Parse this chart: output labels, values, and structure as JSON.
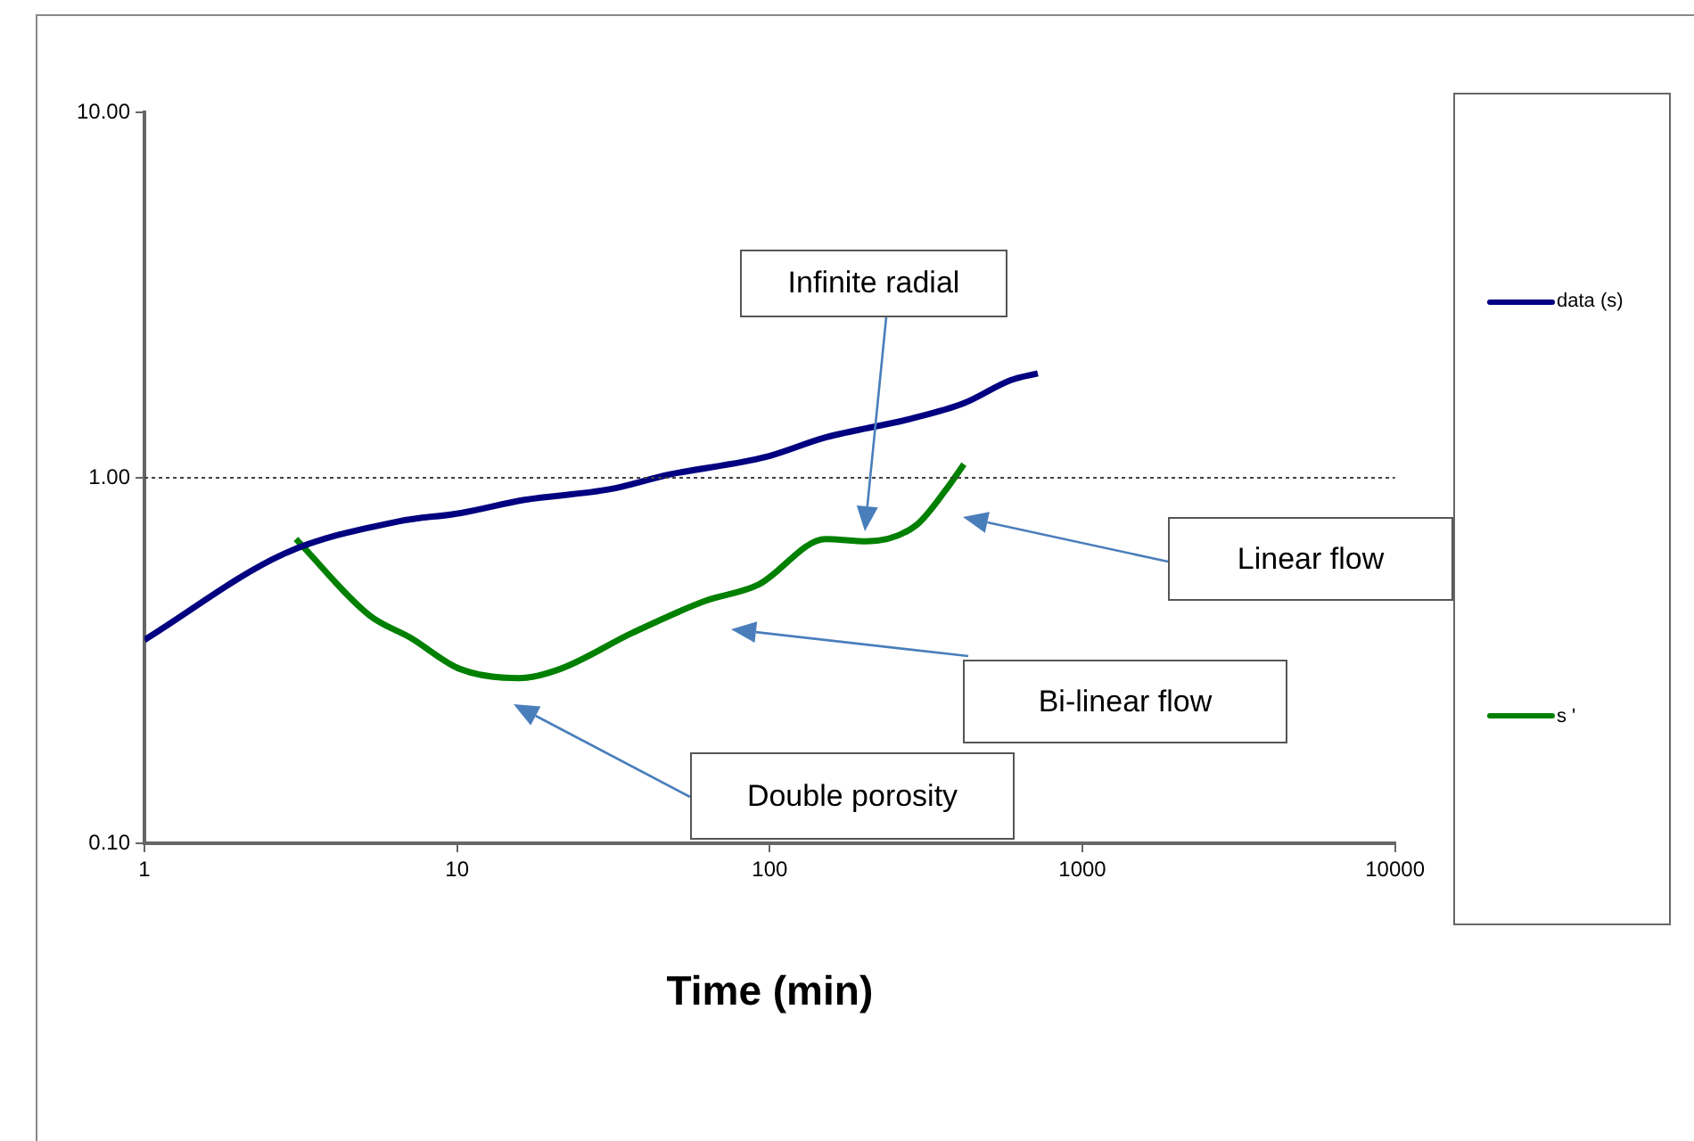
{
  "chart_data": {
    "type": "line",
    "xlabel": "Time (min)",
    "log": "xy",
    "xlim": [
      1,
      10000
    ],
    "xticks": [
      1,
      10,
      100,
      1000,
      10000
    ],
    "ylim": [
      0.1,
      10
    ],
    "yticks": [
      {
        "value": 0.1,
        "label": "0.10"
      },
      {
        "value": 1,
        "label": "1.00"
      },
      {
        "value": 10,
        "label": "10.00"
      }
    ],
    "grid": false,
    "legend": "right",
    "marker": "none",
    "line_style": "solid",
    "ref_lines": [
      {
        "axis": "y",
        "value": 1,
        "color": "#404040",
        "line_style": "dotted"
      }
    ],
    "annotations": [
      "Infinite radial",
      "Linear flow",
      "Bi-linear flow",
      "Double porosity"
    ],
    "series": [
      {
        "name": "data (s)",
        "color": "#000080",
        "x": [
          1,
          2.8,
          6.5,
          10.2,
          16.4,
          30.7,
          47.5,
          97,
          151,
          282,
          418,
          590,
          720
        ],
        "values": [
          0.36,
          0.62,
          0.76,
          0.8,
          0.87,
          0.93,
          1.02,
          1.14,
          1.29,
          1.45,
          1.6,
          1.85,
          1.93
        ]
      },
      {
        "name": "s '",
        "color": "#008000",
        "x": [
          3.05,
          5.25,
          7.1,
          10.2,
          15.8,
          21.4,
          36.5,
          62,
          92,
          151,
          204,
          293,
          367,
          418
        ],
        "values": [
          0.68,
          0.42,
          0.365,
          0.3,
          0.283,
          0.3,
          0.377,
          0.46,
          0.51,
          0.68,
          0.67,
          0.74,
          0.93,
          1.09
        ]
      }
    ]
  }
}
